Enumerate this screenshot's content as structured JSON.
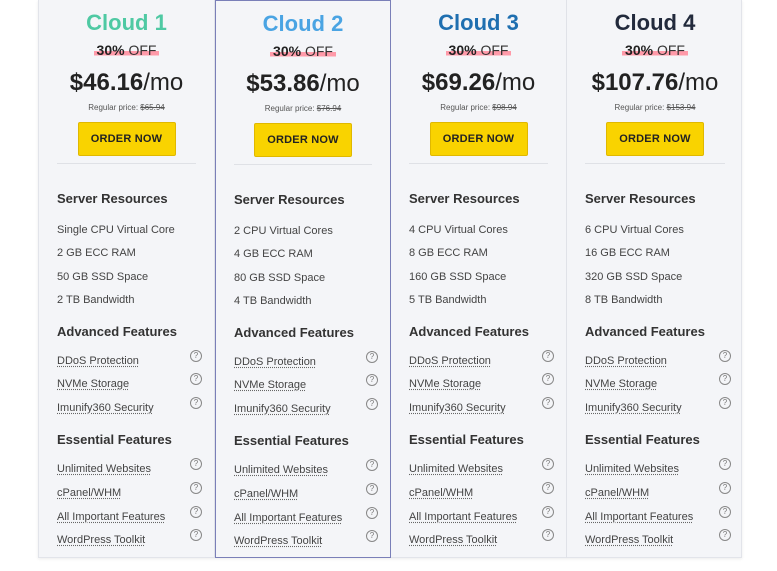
{
  "plans": [
    {
      "name": "Cloud 1",
      "name_color": "#4fc9a3",
      "discount_pct": "30%",
      "discount_off": "OFF",
      "price": "$46.16",
      "period": "/mo",
      "regular_label": "Regular price:",
      "regular_price": "$65.94",
      "order_label": "ORDER NOW",
      "resources_title": "Server Resources",
      "resources": [
        "Single CPU Virtual Core",
        "2 GB ECC RAM",
        "50 GB SSD Space",
        "2 TB Bandwidth"
      ],
      "advanced_title": "Advanced Features",
      "advanced": [
        "DDoS Protection",
        "NVMe Storage",
        "Imunify360 Security"
      ],
      "essential_title": "Essential Features",
      "essential": [
        "Unlimited Websites",
        "cPanel/WHM",
        "All Important Features",
        "WordPress Toolkit"
      ],
      "help_glyph": "?"
    },
    {
      "name": "Cloud 2",
      "name_color": "#4aa4e3",
      "discount_pct": "30%",
      "discount_off": "OFF",
      "price": "$53.86",
      "period": "/mo",
      "regular_label": "Regular price:",
      "regular_price": "$76.94",
      "order_label": "ORDER NOW",
      "resources_title": "Server Resources",
      "resources": [
        "2 CPU Virtual Cores",
        "4 GB ECC RAM",
        "80 GB SSD Space",
        "4 TB Bandwidth"
      ],
      "advanced_title": "Advanced Features",
      "advanced": [
        "DDoS Protection",
        "NVMe Storage",
        "Imunify360 Security"
      ],
      "essential_title": "Essential Features",
      "essential": [
        "Unlimited Websites",
        "cPanel/WHM",
        "All Important Features",
        "WordPress Toolkit"
      ],
      "help_glyph": "?"
    },
    {
      "name": "Cloud 3",
      "name_color": "#1f6fb0",
      "discount_pct": "30%",
      "discount_off": "OFF",
      "price": "$69.26",
      "period": "/mo",
      "regular_label": "Regular price:",
      "regular_price": "$98.94",
      "order_label": "ORDER NOW",
      "resources_title": "Server Resources",
      "resources": [
        "4 CPU Virtual Cores",
        "8 GB ECC RAM",
        "160 GB SSD Space",
        "5 TB Bandwidth"
      ],
      "advanced_title": "Advanced Features",
      "advanced": [
        "DDoS Protection",
        "NVMe Storage",
        "Imunify360 Security"
      ],
      "essential_title": "Essential Features",
      "essential": [
        "Unlimited Websites",
        "cPanel/WHM",
        "All Important Features",
        "WordPress Toolkit"
      ],
      "help_glyph": "?"
    },
    {
      "name": "Cloud 4",
      "name_color": "#222a3c",
      "discount_pct": "30%",
      "discount_off": "OFF",
      "price": "$107.76",
      "period": "/mo",
      "regular_label": "Regular price:",
      "regular_price": "$153.94",
      "order_label": "ORDER NOW",
      "resources_title": "Server Resources",
      "resources": [
        "6 CPU Virtual Cores",
        "16 GB ECC RAM",
        "320 GB SSD Space",
        "8 TB Bandwidth"
      ],
      "advanced_title": "Advanced Features",
      "advanced": [
        "DDoS Protection",
        "NVMe Storage",
        "Imunify360 Security"
      ],
      "essential_title": "Essential Features",
      "essential": [
        "Unlimited Websites",
        "cPanel/WHM",
        "All Important Features",
        "WordPress Toolkit"
      ],
      "help_glyph": "?"
    }
  ],
  "colors": {
    "button_bg": "#f9d300",
    "discount_highlight": "#ff9aa9",
    "featured_border": "#7a7fb8"
  }
}
